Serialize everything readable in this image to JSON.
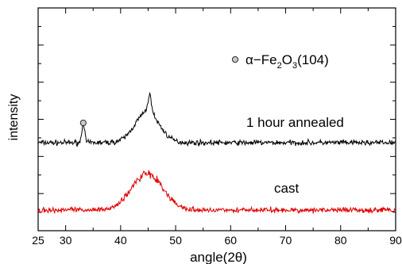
{
  "chart_data": {
    "type": "line",
    "title": "",
    "xlabel": "angle(2θ)",
    "ylabel": "intensity",
    "xlim": [
      25,
      90
    ],
    "x_ticks": [
      30,
      40,
      50,
      60,
      70,
      80,
      90
    ],
    "y_ticks_labeled": false,
    "grid": false,
    "series": [
      {
        "name": "1 hour annealed",
        "color": "#000000",
        "baseline": 0.0,
        "noise": 0.08,
        "peaks": [
          {
            "center": 33.2,
            "height": 0.42,
            "width": 0.25
          },
          {
            "center": 44.8,
            "height": 0.62,
            "width": 2.2
          },
          {
            "center": 45.3,
            "height": 0.35,
            "width": 0.35
          }
        ]
      },
      {
        "name": "cast",
        "color": "#e00000",
        "baseline": 0.0,
        "noise": 0.08,
        "peaks": [
          {
            "center": 44.8,
            "height": 0.75,
            "width": 2.8
          }
        ]
      }
    ],
    "annotations": {
      "marker_label_prefix": "α−Fe",
      "marker_label_sub1": "2",
      "marker_label_mid": "O",
      "marker_label_sub2": "3",
      "marker_label_suffix": "(104)",
      "peak_marker_x": 33.2
    }
  }
}
